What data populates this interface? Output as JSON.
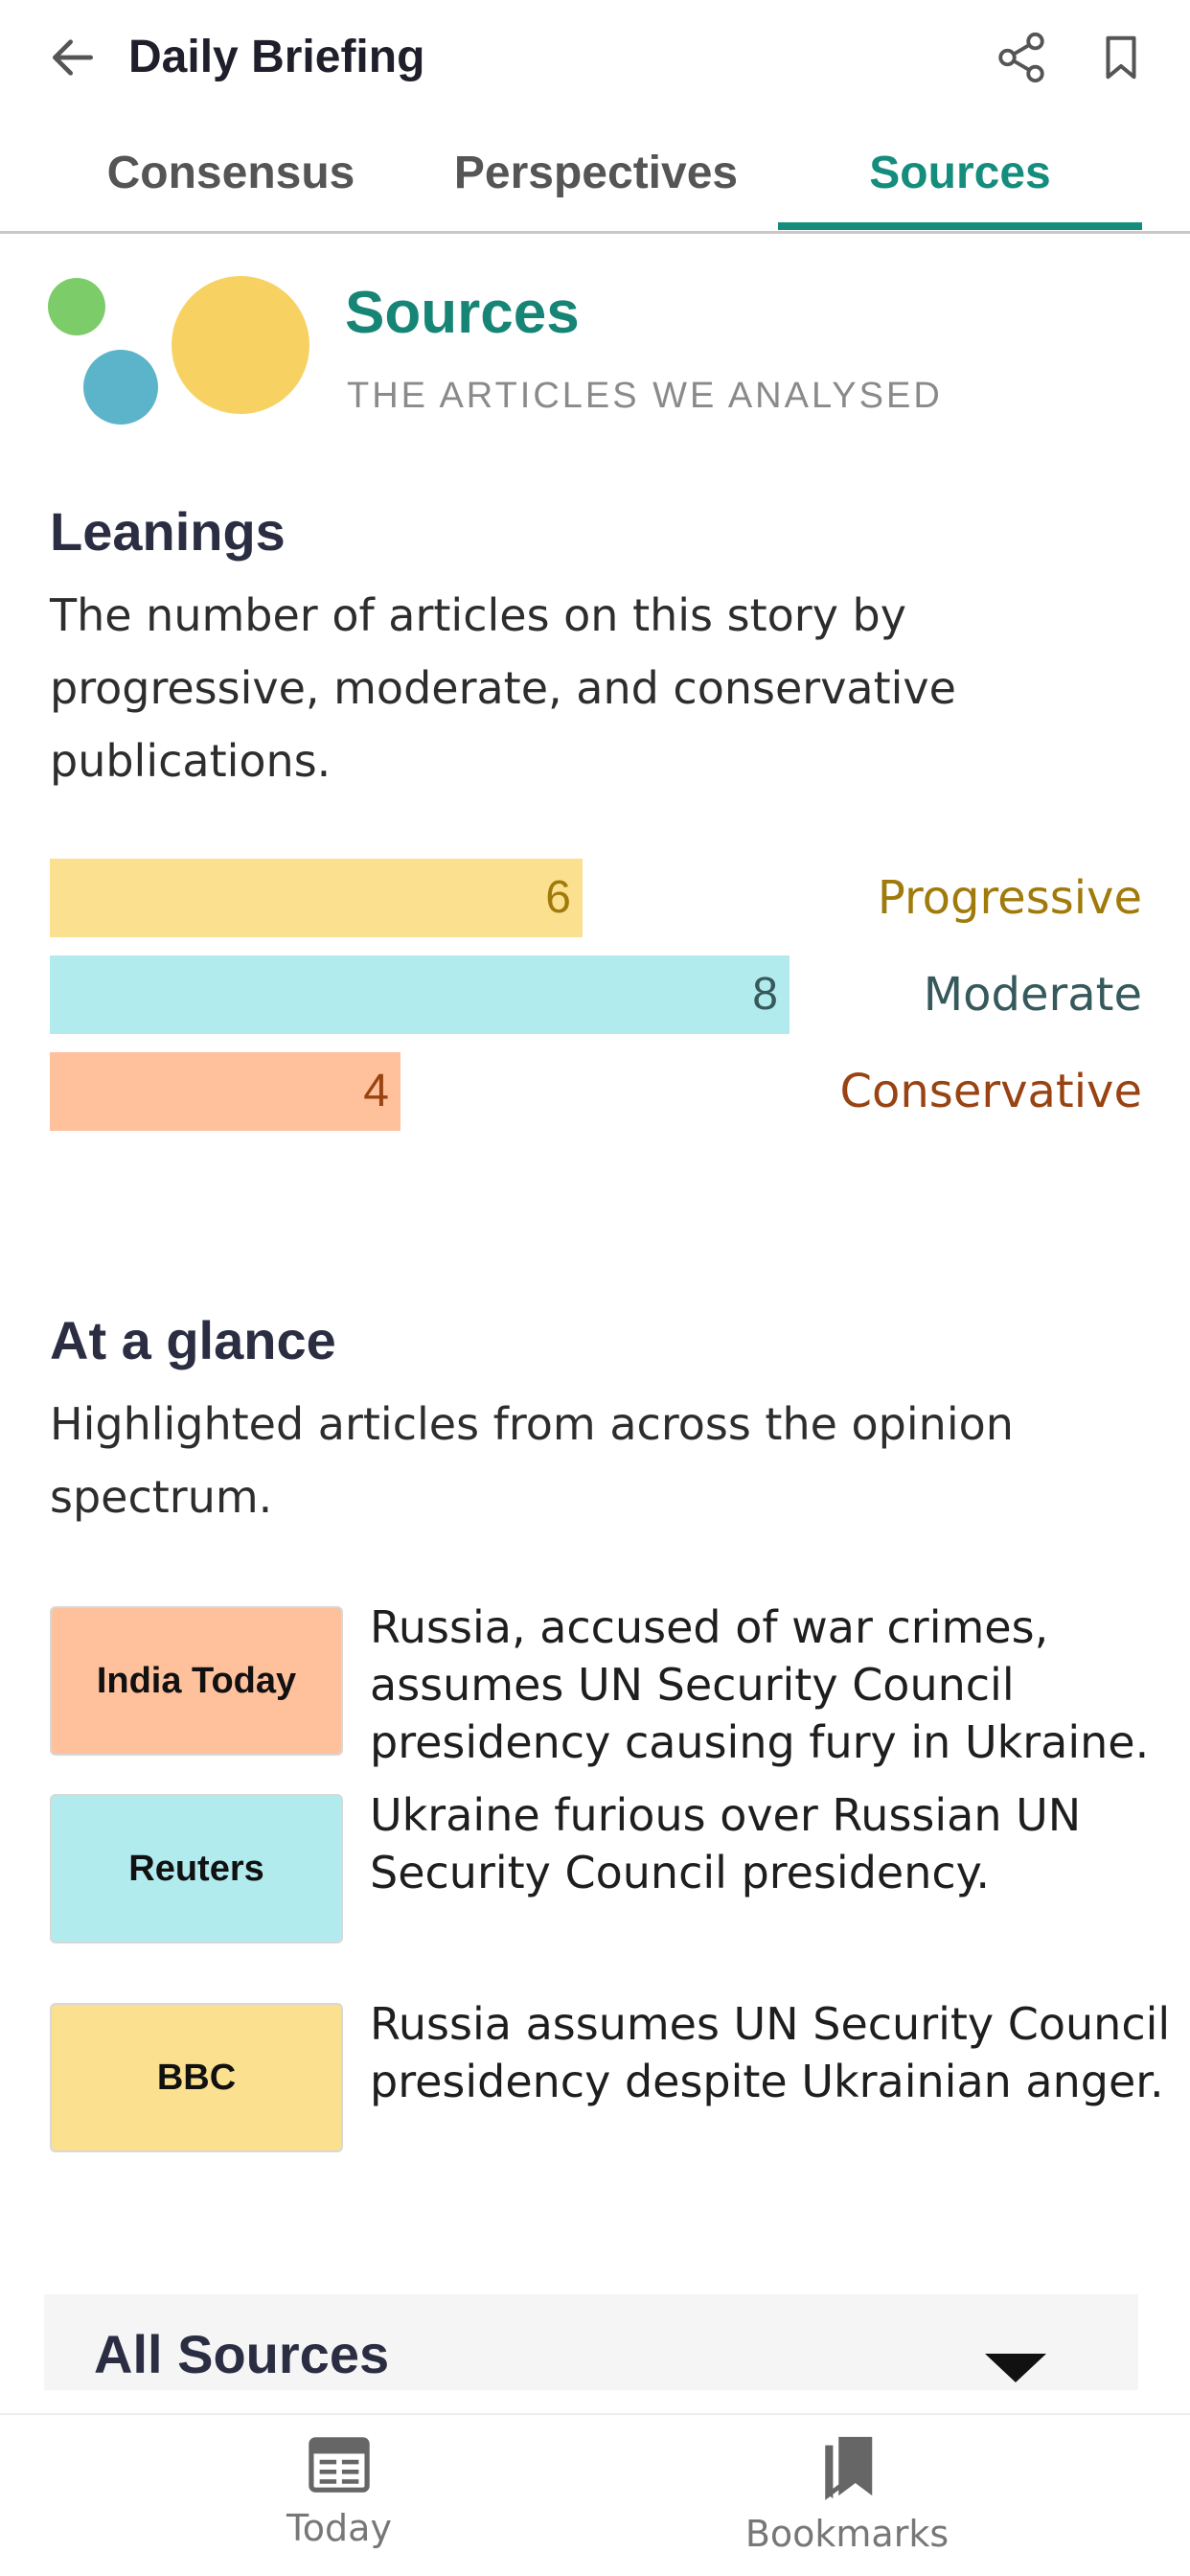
{
  "header": {
    "title": "Daily Briefing",
    "back_icon": "arrow-left-icon",
    "share_icon": "share-icon",
    "bookmark_icon": "bookmark-outline-icon"
  },
  "tabs": [
    {
      "label": "Consensus",
      "active": false
    },
    {
      "label": "Perspectives",
      "active": false
    },
    {
      "label": "Sources",
      "active": true
    }
  ],
  "section": {
    "title": "Sources",
    "subtitle": "THE ARTICLES WE ANALYSED"
  },
  "leanings": {
    "heading": "Leanings",
    "description": "The number of articles on this story by progressive, moderate, and conservative publications.",
    "bars": [
      {
        "label": "Progressive",
        "value": "6",
        "fill": "#fae08f",
        "text_color": "#a07a0a"
      },
      {
        "label": "Moderate",
        "value": "8",
        "fill": "#b2ebee",
        "text_color": "#36595c"
      },
      {
        "label": "Conservative",
        "value": "4",
        "fill": "#ffc09c",
        "text_color": "#9a4312"
      }
    ]
  },
  "glance": {
    "heading": "At a glance",
    "description": "Highlighted articles from across the opinion spectrum.",
    "articles": [
      {
        "source": "India Today",
        "headline": "Russia, accused of war crimes, assumes UN Security Council presidency causing fury in Ukraine.",
        "color": "#ffc09c"
      },
      {
        "source": "Reuters",
        "headline": "Ukraine furious over Russian UN Security Council presidency.",
        "color": "#b2ebee"
      },
      {
        "source": "BBC",
        "headline": "Russia assumes UN Security Council presidency despite Ukrainian anger.",
        "color": "#fae08f"
      }
    ]
  },
  "all_sources": {
    "label": "All Sources",
    "icon": "caret-down-icon"
  },
  "bottom_nav": {
    "today": {
      "label": "Today",
      "icon": "calendar-icon"
    },
    "bookmarks": {
      "label": "Bookmarks",
      "icon": "bookmarks-icon"
    }
  }
}
